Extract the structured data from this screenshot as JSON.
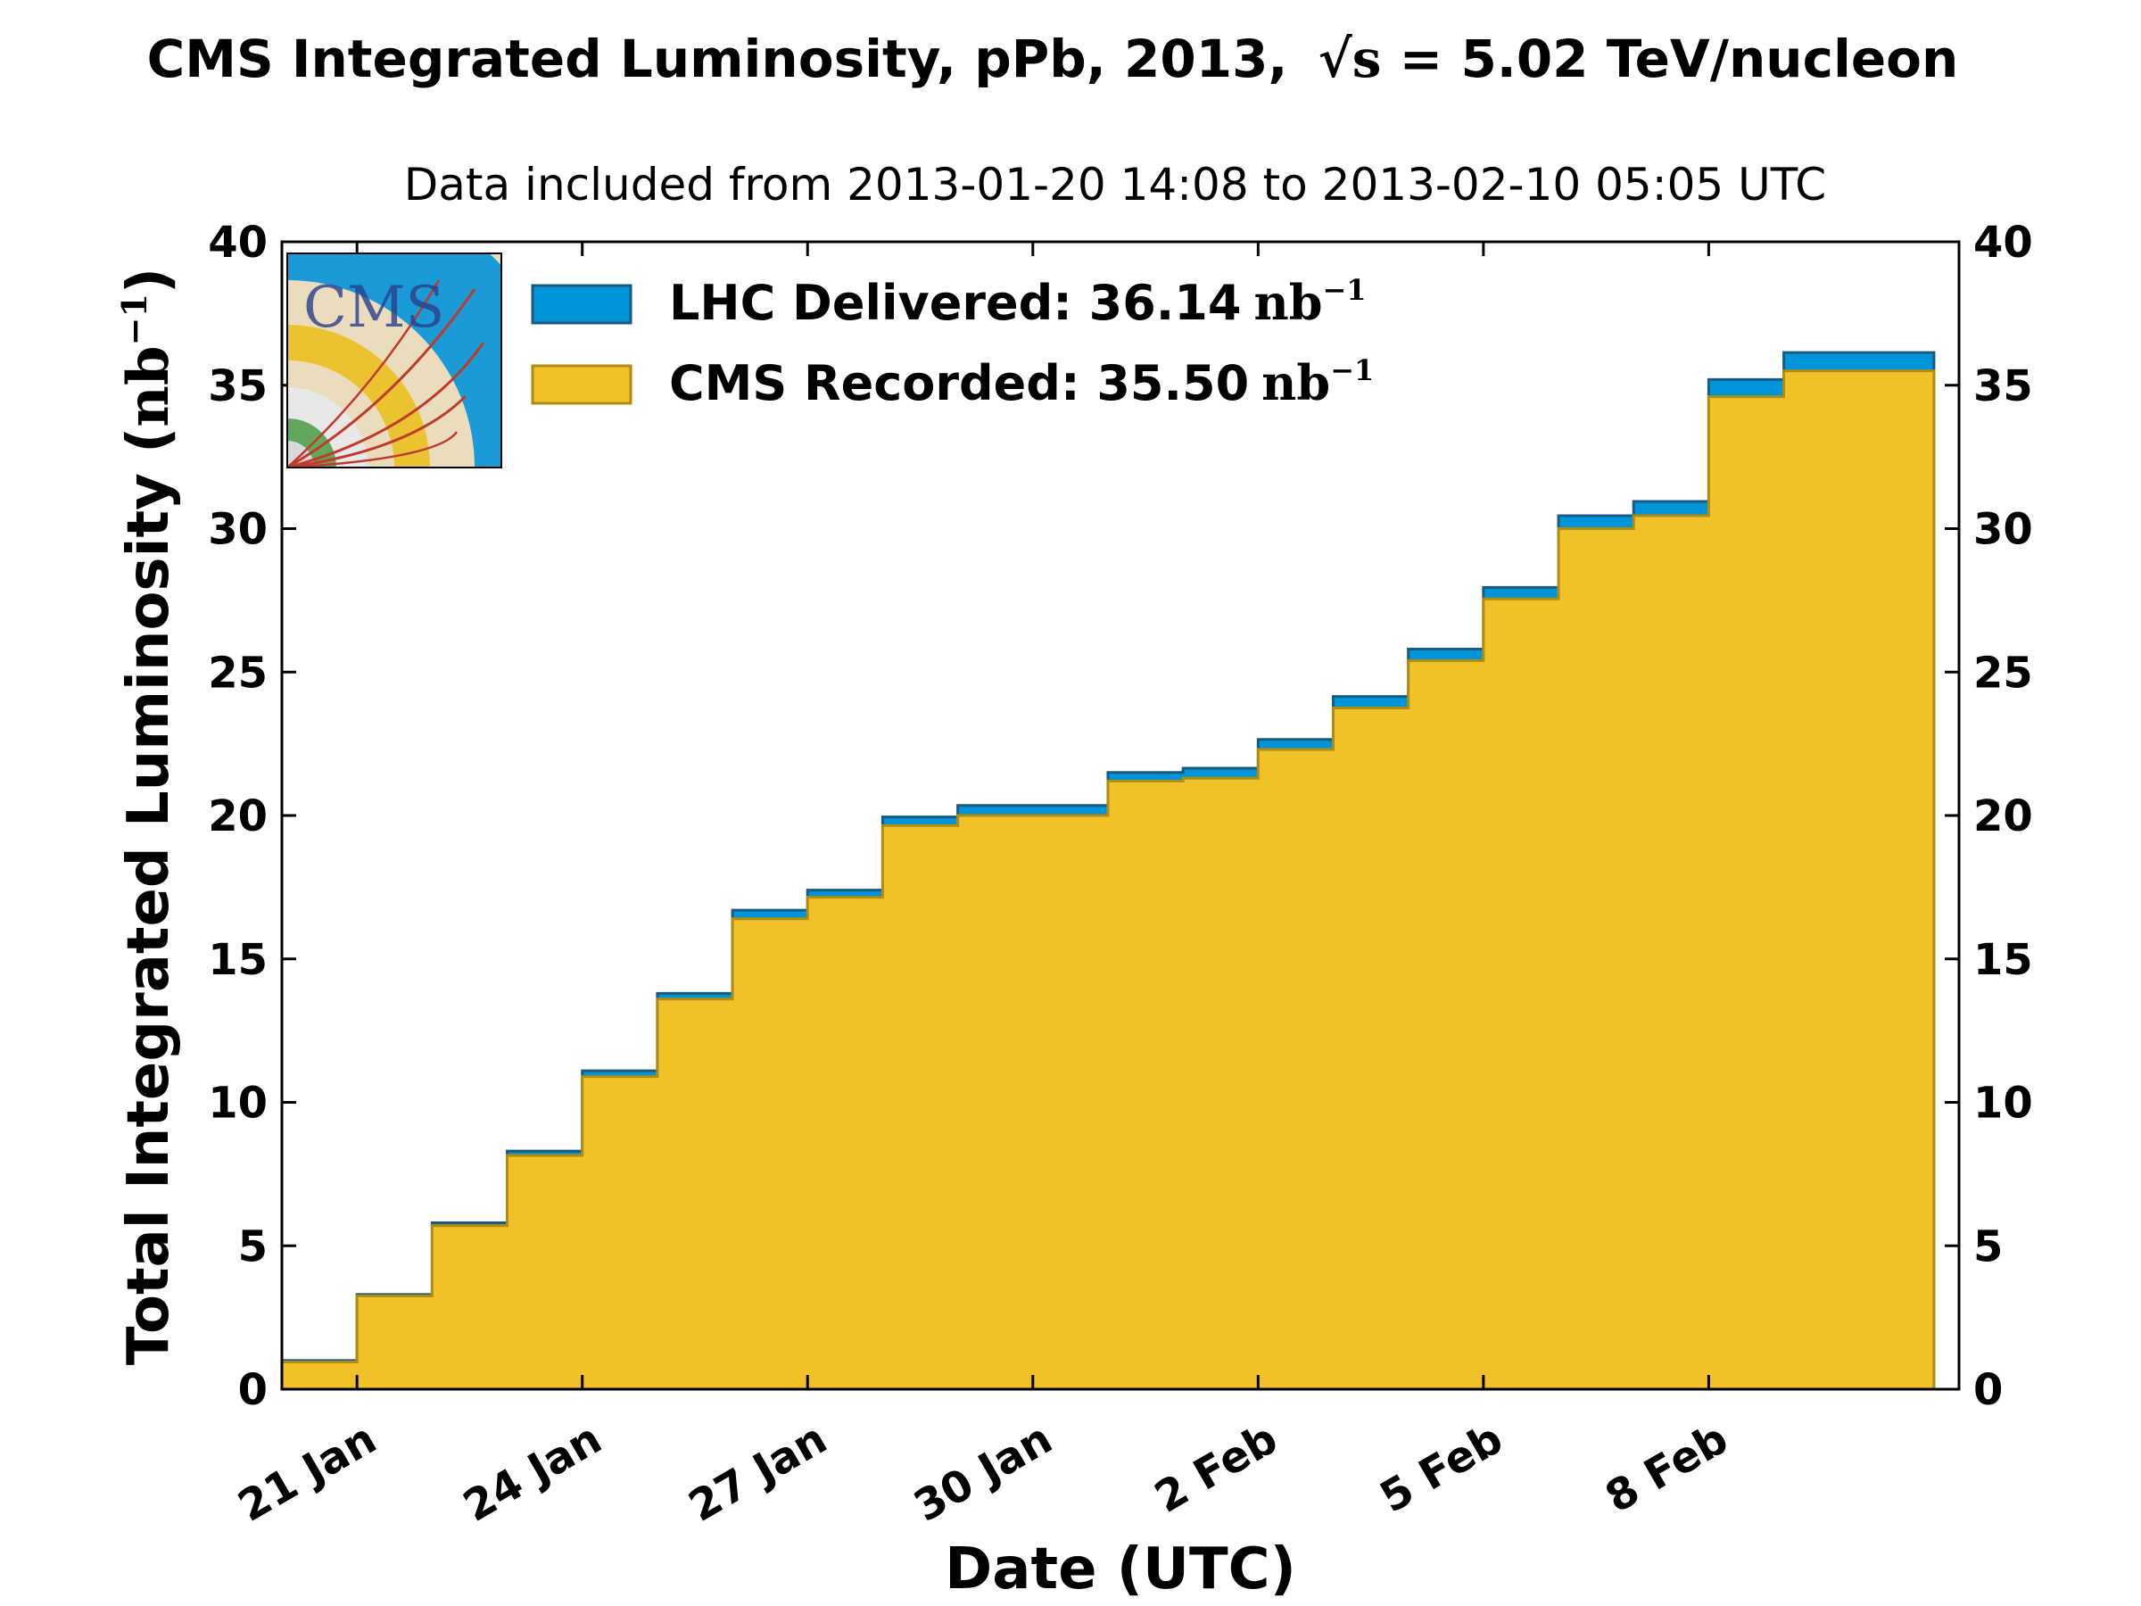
{
  "chart_data": {
    "type": "area",
    "title_main": "CMS Integrated Luminosity, pPb, 2013,",
    "title_sqrt": "√s = ",
    "title_energy": "5.02 TeV/nucleon",
    "subtitle": "Data included from 2013-01-20 14:08 to 2013-02-10 05:05 UTC",
    "xlabel": "Date (UTC)",
    "ylabel_text": "Total Integrated Luminosity (",
    "ylabel_unit": "nb",
    "ylabel_exp": "−1",
    "ylabel_close": ")",
    "ylim": [
      0,
      40
    ],
    "yticks": [
      "0",
      "5",
      "10",
      "15",
      "20",
      "25",
      "30",
      "35",
      "40"
    ],
    "xlim": [
      "2013-01-20T00:00",
      "2013-02-11T08:00"
    ],
    "xticks": [
      {
        "date": "2013-01-21",
        "label": "21 Jan"
      },
      {
        "date": "2013-01-24",
        "label": "24 Jan"
      },
      {
        "date": "2013-01-27",
        "label": "27 Jan"
      },
      {
        "date": "2013-01-30",
        "label": "30 Jan"
      },
      {
        "date": "2013-02-02",
        "label": "2 Feb"
      },
      {
        "date": "2013-02-05",
        "label": "5 Feb"
      },
      {
        "date": "2013-02-08",
        "label": "8 Feb"
      }
    ],
    "legend_position": "top-left",
    "grid": false,
    "series": [
      {
        "name": "LHC Delivered",
        "legend_value": "36.14",
        "color": "#0095d9",
        "edge": "#1a5a82",
        "days": [
          "2013-01-20",
          "2013-01-21",
          "2013-01-22",
          "2013-01-23",
          "2013-01-24",
          "2013-01-25",
          "2013-01-26",
          "2013-01-27",
          "2013-01-28",
          "2013-01-29",
          "2013-01-30",
          "2013-01-31",
          "2013-02-01",
          "2013-02-02",
          "2013-02-03",
          "2013-02-04",
          "2013-02-05",
          "2013-02-06",
          "2013-02-07",
          "2013-02-08",
          "2013-02-09",
          "2013-02-10"
        ],
        "values": [
          1.0,
          3.3,
          5.8,
          8.3,
          11.1,
          13.8,
          16.7,
          17.4,
          19.95,
          20.35,
          20.35,
          21.5,
          21.65,
          22.65,
          24.15,
          25.8,
          27.95,
          30.45,
          30.95,
          35.2,
          36.14,
          36.14
        ]
      },
      {
        "name": "CMS Recorded",
        "legend_value": "35.50",
        "color": "#f0c228",
        "edge": "#b08c10",
        "days": [
          "2013-01-20",
          "2013-01-21",
          "2013-01-22",
          "2013-01-23",
          "2013-01-24",
          "2013-01-25",
          "2013-01-26",
          "2013-01-27",
          "2013-01-28",
          "2013-01-29",
          "2013-01-30",
          "2013-01-31",
          "2013-02-01",
          "2013-02-02",
          "2013-02-03",
          "2013-02-04",
          "2013-02-05",
          "2013-02-06",
          "2013-02-07",
          "2013-02-08",
          "2013-02-09",
          "2013-02-10"
        ],
        "values": [
          0.95,
          3.25,
          5.7,
          8.15,
          10.9,
          13.6,
          16.4,
          17.15,
          19.65,
          20.0,
          20.0,
          21.2,
          21.3,
          22.3,
          23.75,
          25.4,
          27.55,
          30.0,
          30.45,
          34.6,
          35.5,
          35.5
        ]
      }
    ],
    "legend_unit": "nb",
    "legend_exp": "−1",
    "logo_text": "CMS"
  }
}
